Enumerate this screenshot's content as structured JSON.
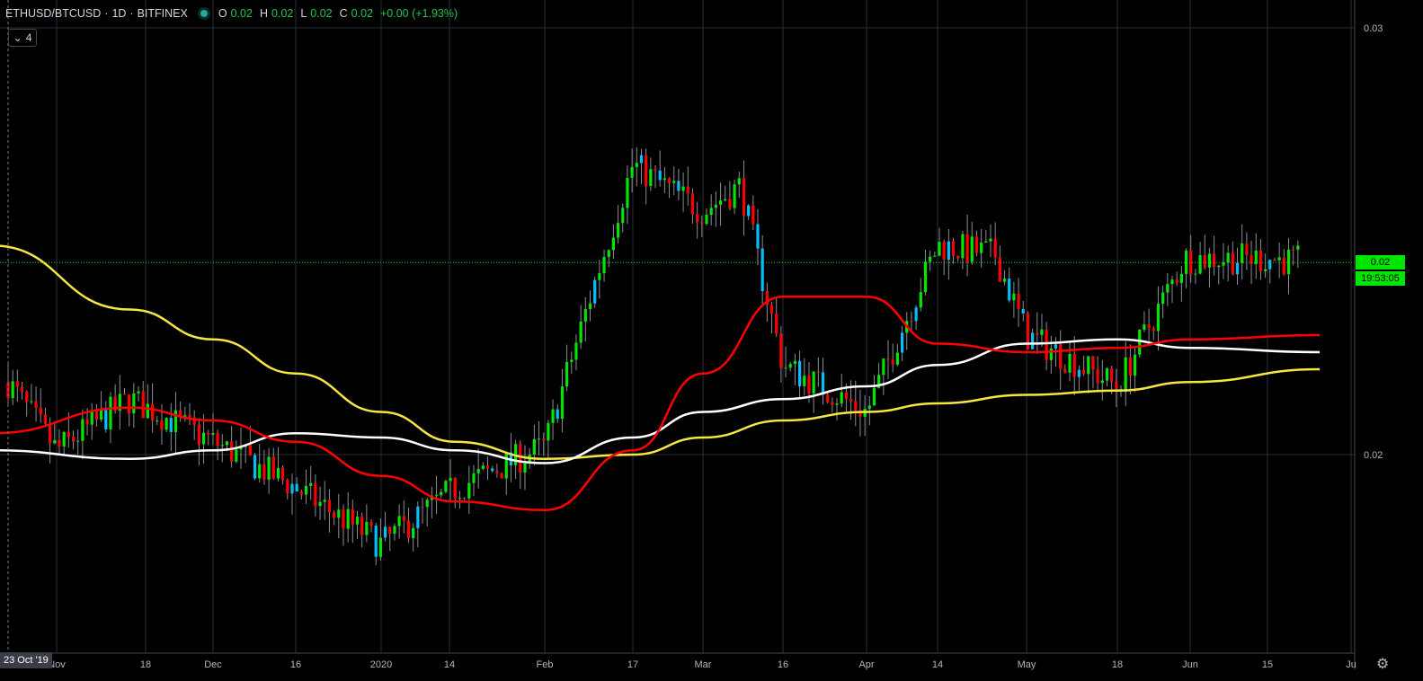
{
  "header": {
    "symbol": "ETHUSD/BTCUSD",
    "sep1": "·",
    "interval": "1D",
    "sep2": "·",
    "exchange": "BITFINEX",
    "o_label": "O",
    "o_value": "0.02",
    "h_label": "H",
    "h_value": "0.02",
    "l_label": "L",
    "l_value": "0.02",
    "c_label": "C",
    "c_value": "0.02",
    "change": "+0.00 (+1.93%)"
  },
  "indicators_toggle": {
    "icon": "chevron-down-icon",
    "count": "4"
  },
  "price_axis": {
    "labels": [
      "0.03",
      "0.02"
    ],
    "current_price": "0.02",
    "countdown": "19:53:05",
    "current_price_color": "#00e600"
  },
  "time_axis": {
    "labels": [
      "Nov",
      "18",
      "Dec",
      "16",
      "2020",
      "14",
      "Feb",
      "17",
      "Mar",
      "16",
      "Apr",
      "14",
      "May",
      "18",
      "Jun",
      "15",
      "Ju"
    ],
    "crosshair_date": "23 Oct '19"
  },
  "colors": {
    "up": "#00e600",
    "down": "#ff0000",
    "up_hollow": "#00bfff",
    "ma_yellow": "#f5e642",
    "ma_white": "#ffffff",
    "ma_red": "#ff0000",
    "grid": "#2a2e39"
  },
  "chart_data": {
    "type": "candlestick",
    "title": "ETHUSD/BTCUSD · 1D · BITFINEX",
    "ylim": [
      0.0154,
      0.0303
    ],
    "series": [
      {
        "name": "ETHUSD/BTCUSD",
        "kind": "candles",
        "x": [
          "2019-10-23",
          "2019-11-01",
          "2019-11-15",
          "2019-12-01",
          "2019-12-15",
          "2020-01-01",
          "2020-01-15",
          "2020-02-01",
          "2020-02-10",
          "2020-02-17",
          "2020-03-01",
          "2020-03-08",
          "2020-03-16",
          "2020-04-01",
          "2020-04-14",
          "2020-04-25",
          "2020-05-01",
          "2020-05-18",
          "2020-05-31",
          "2020-06-15",
          "2020-06-23"
        ],
        "close": [
          0.0217,
          0.0201,
          0.0213,
          0.0203,
          0.0193,
          0.0179,
          0.0192,
          0.0202,
          0.024,
          0.0268,
          0.0257,
          0.0263,
          0.0221,
          0.021,
          0.0249,
          0.0247,
          0.0228,
          0.0216,
          0.0246,
          0.0246,
          0.0245
        ]
      },
      {
        "name": "yellow moving average",
        "kind": "line",
        "x": [
          "2019-10-20",
          "2019-11-15",
          "2019-12-01",
          "2019-12-16",
          "2020-01-01",
          "2020-01-15",
          "2020-02-01",
          "2020-02-17",
          "2020-03-01",
          "2020-03-16",
          "2020-04-01",
          "2020-04-14",
          "2020-05-01",
          "2020-05-18",
          "2020-06-01",
          "2020-06-25"
        ],
        "values": [
          0.0249,
          0.0234,
          0.0227,
          0.0219,
          0.021,
          0.0203,
          0.0199,
          0.02,
          0.0204,
          0.0208,
          0.021,
          0.0212,
          0.0214,
          0.0215,
          0.0217,
          0.022
        ]
      },
      {
        "name": "white moving average",
        "kind": "line",
        "x": [
          "2019-10-20",
          "2019-11-15",
          "2019-12-01",
          "2019-12-16",
          "2020-01-01",
          "2020-01-15",
          "2020-02-01",
          "2020-02-17",
          "2020-03-01",
          "2020-03-16",
          "2020-04-01",
          "2020-04-14",
          "2020-05-01",
          "2020-05-18",
          "2020-06-01",
          "2020-06-25"
        ],
        "values": [
          0.0201,
          0.0199,
          0.0201,
          0.0205,
          0.0204,
          0.0201,
          0.0198,
          0.0204,
          0.021,
          0.0213,
          0.0216,
          0.0221,
          0.0226,
          0.0227,
          0.0225,
          0.0224
        ]
      },
      {
        "name": "red moving average",
        "kind": "line",
        "x": [
          "2019-10-20",
          "2019-11-15",
          "2019-12-01",
          "2019-12-16",
          "2020-01-01",
          "2020-01-15",
          "2020-02-01",
          "2020-02-17",
          "2020-03-01",
          "2020-03-16",
          "2020-04-01",
          "2020-04-14",
          "2020-05-01",
          "2020-05-18",
          "2020-06-01",
          "2020-06-25"
        ],
        "values": [
          0.0205,
          0.0211,
          0.0208,
          0.0203,
          0.0195,
          0.0189,
          0.0187,
          0.0201,
          0.0219,
          0.0237,
          0.0237,
          0.0226,
          0.0224,
          0.0225,
          0.0227,
          0.0228
        ]
      }
    ],
    "axes": {
      "y_ticks": [
        0.03,
        0.02
      ],
      "x_ticks": [
        "Nov",
        "18",
        "Dec",
        "16",
        "2020",
        "14",
        "Feb",
        "17",
        "Mar",
        "16",
        "Apr",
        "14",
        "May",
        "18",
        "Jun",
        "15",
        "Ju"
      ]
    },
    "grid": true,
    "current_price_line": 0.0245
  }
}
